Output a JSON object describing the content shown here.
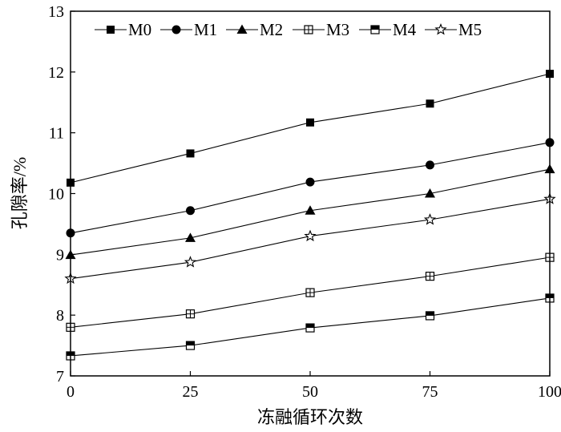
{
  "chart_data": {
    "type": "line",
    "xlabel": "冻融循环次数",
    "ylabel": "孔隙率/%",
    "xlim": [
      0,
      100
    ],
    "ylim": [
      7,
      13
    ],
    "x_ticks": [
      "0",
      "25",
      "50",
      "75",
      "100"
    ],
    "y_ticks": [
      "7",
      "8",
      "9",
      "10",
      "11",
      "12",
      "13"
    ],
    "x": [
      0,
      25,
      50,
      75,
      100
    ],
    "grid": false,
    "legend_position": "top",
    "series": [
      {
        "name": "M0",
        "marker": "square-filled",
        "values": [
          10.18,
          10.66,
          11.17,
          11.48,
          11.97
        ]
      },
      {
        "name": "M1",
        "marker": "circle-filled",
        "values": [
          9.35,
          9.72,
          10.19,
          10.47,
          10.84
        ]
      },
      {
        "name": "M2",
        "marker": "triangle-filled",
        "values": [
          8.99,
          9.27,
          9.72,
          10.0,
          10.4
        ]
      },
      {
        "name": "M3",
        "marker": "square-crossed",
        "values": [
          7.8,
          8.02,
          8.37,
          8.64,
          8.95
        ]
      },
      {
        "name": "M4",
        "marker": "square-half",
        "values": [
          7.33,
          7.5,
          7.79,
          7.99,
          8.28
        ]
      },
      {
        "name": "M5",
        "marker": "star-open",
        "values": [
          8.6,
          8.87,
          9.3,
          9.57,
          9.91
        ]
      }
    ]
  }
}
